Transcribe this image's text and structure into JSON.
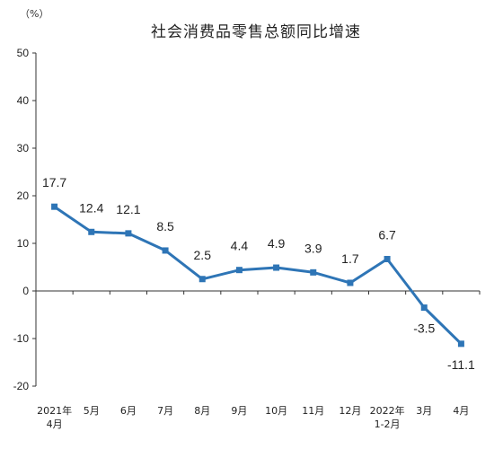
{
  "chart_data": {
    "type": "line",
    "title": "社会消费品零售总额同比增速",
    "unit": "（%）",
    "ylim": [
      -20,
      50
    ],
    "yticks": [
      -20,
      -10,
      0,
      10,
      20,
      30,
      40,
      50
    ],
    "categories": [
      [
        "2021年",
        "4月"
      ],
      [
        "5月"
      ],
      [
        "6月"
      ],
      [
        "7月"
      ],
      [
        "8月"
      ],
      [
        "9月"
      ],
      [
        "10月"
      ],
      [
        "11月"
      ],
      [
        "12月"
      ],
      [
        "2022年",
        "1-2月"
      ],
      [
        "3月"
      ],
      [
        "4月"
      ]
    ],
    "values": [
      17.7,
      12.4,
      12.1,
      8.5,
      2.5,
      4.4,
      4.9,
      3.9,
      1.7,
      6.7,
      -3.5,
      -11.1
    ],
    "labels": [
      "17.7",
      "12.4",
      "12.1",
      "8.5",
      "2.5",
      "4.4",
      "4.9",
      "3.9",
      "1.7",
      "6.7",
      "-3.5",
      "-11.1"
    ],
    "grid": false,
    "colors": {
      "line": "#2e75b6",
      "axis": "#333333"
    }
  }
}
